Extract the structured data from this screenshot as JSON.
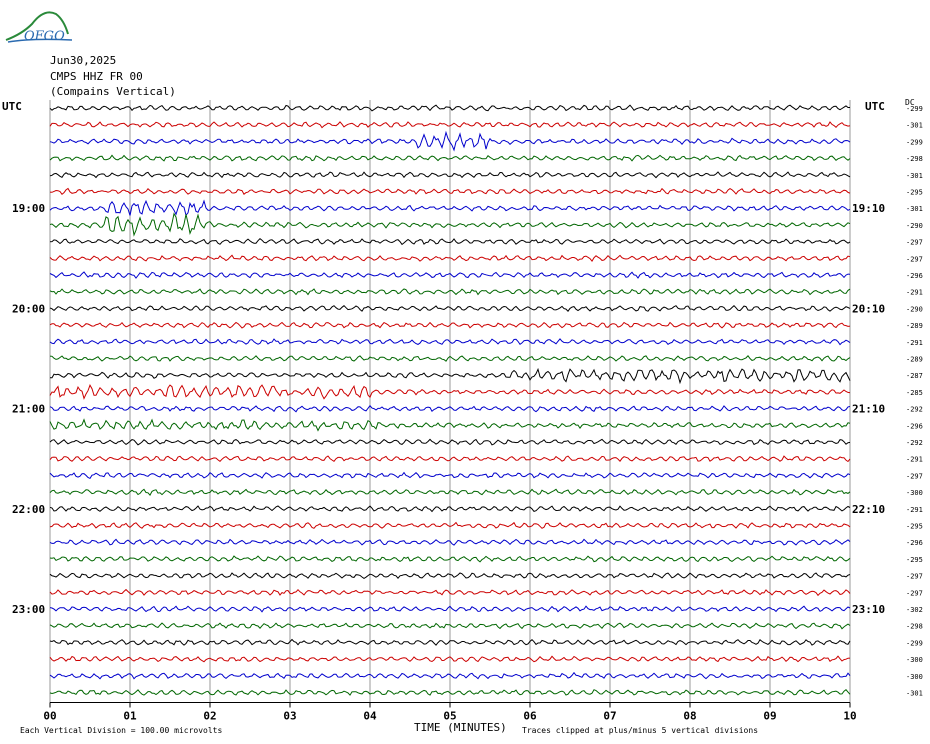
{
  "logo": {
    "text": "OFGO"
  },
  "header": {
    "date": "Jun30,2025",
    "station": "CMPS HHZ FR 00",
    "location": "(Compains Vertical)",
    "utc_left": "UTC",
    "utc_right": "UTC",
    "dc_label": "DC"
  },
  "footer": {
    "xlabel": "TIME (MINUTES)",
    "scale_note": "Each Vertical Division =  100.00 microvolts",
    "clip_note": "Traces clipped at plus/minus 5 vertical divisions"
  },
  "chart_data": {
    "type": "line",
    "title": "CMPS HHZ FR 00 (Compains Vertical)",
    "xlabel": "TIME (MINUTES)",
    "xlim": [
      0,
      10
    ],
    "x_ticks": [
      "00",
      "01",
      "02",
      "03",
      "04",
      "05",
      "06",
      "07",
      "08",
      "09",
      "10"
    ],
    "left_hour_labels": [
      {
        "row": 6,
        "label": "19:00"
      },
      {
        "row": 12,
        "label": "20:00"
      },
      {
        "row": 18,
        "label": "21:00"
      },
      {
        "row": 24,
        "label": "22:00"
      },
      {
        "row": 30,
        "label": "23:00"
      }
    ],
    "right_hour_labels": [
      {
        "row": 6,
        "label": "19:10"
      },
      {
        "row": 12,
        "label": "20:10"
      },
      {
        "row": 18,
        "label": "21:10"
      },
      {
        "row": 24,
        "label": "22:10"
      },
      {
        "row": 30,
        "label": "23:10"
      }
    ],
    "trace_colors": [
      "#000000",
      "#cc0000",
      "#0000cc",
      "#006600"
    ],
    "dc_offsets": [
      -299,
      -301,
      -299,
      -298,
      -301,
      -295,
      -301,
      -290,
      -297,
      -297,
      -296,
      -291,
      -290,
      -289,
      -291,
      -289,
      -287,
      -285,
      -292,
      -296,
      -292,
      -291,
      -297,
      -300,
      -291,
      -295,
      -296,
      -295,
      -297,
      -297,
      -302,
      -298,
      -299,
      -300,
      -300,
      -301
    ],
    "grid": true
  }
}
